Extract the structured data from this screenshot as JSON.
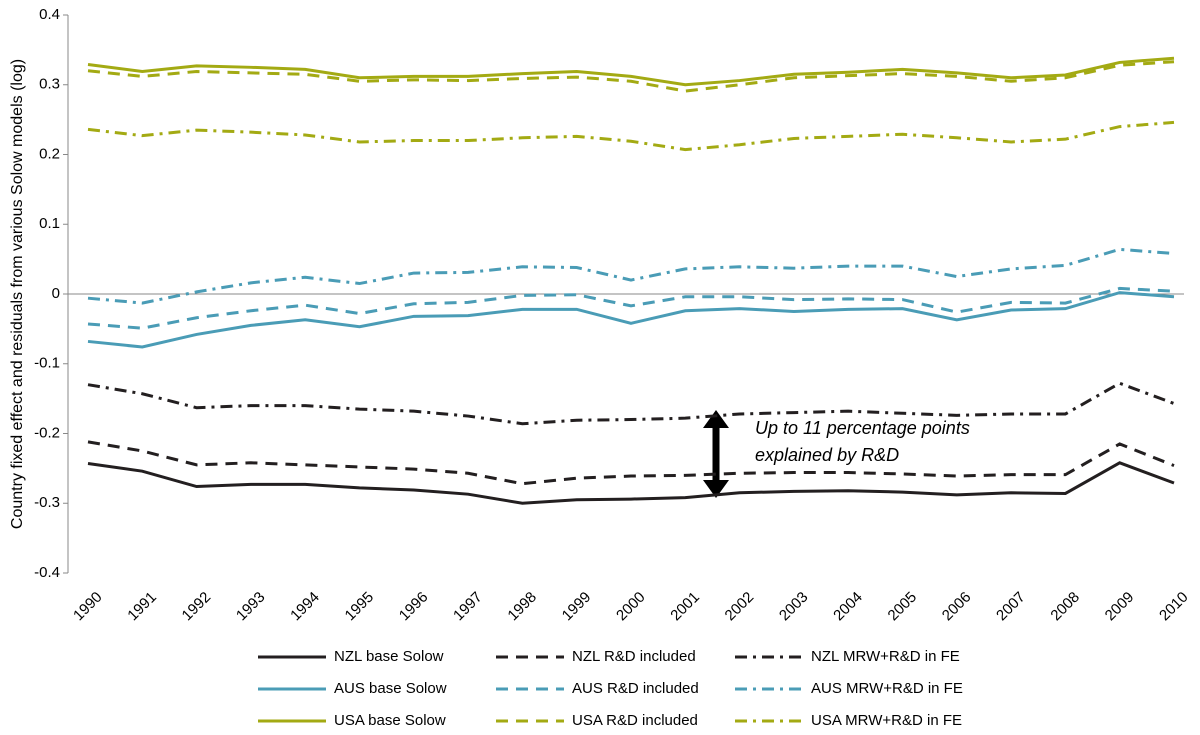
{
  "chart_data": {
    "type": "line",
    "y_label": "Country fixed effect and residuals from various Solow models (log)",
    "annotation": [
      "Up to 11 percentage points",
      "explained by R&D"
    ],
    "categories": [
      "1990",
      "1991",
      "1992",
      "1993",
      "1994",
      "1995",
      "1996",
      "1997",
      "1998",
      "1999",
      "2000",
      "2001",
      "2002",
      "2003",
      "2004",
      "2005",
      "2006",
      "2007",
      "2008",
      "2009",
      "2010"
    ],
    "ylim": [
      -0.4,
      0.4
    ],
    "yticks": [
      -0.4,
      -0.3,
      -0.2,
      -0.1,
      0,
      0.1,
      0.2,
      0.3,
      0.4
    ],
    "legend_columns": 3,
    "series": [
      {
        "name": "NZL base Solow",
        "color": "#231f20",
        "style": "solid",
        "values": [
          -0.243,
          -0.254,
          -0.276,
          -0.273,
          -0.273,
          -0.278,
          -0.281,
          -0.287,
          -0.3,
          -0.295,
          -0.294,
          -0.292,
          -0.285,
          -0.283,
          -0.282,
          -0.284,
          -0.288,
          -0.285,
          -0.286,
          -0.242,
          -0.271
        ]
      },
      {
        "name": "NZL R&D included",
        "color": "#231f20",
        "style": "dashed",
        "values": [
          -0.212,
          -0.225,
          -0.245,
          -0.242,
          -0.245,
          -0.248,
          -0.251,
          -0.257,
          -0.272,
          -0.264,
          -0.261,
          -0.26,
          -0.257,
          -0.256,
          -0.256,
          -0.258,
          -0.261,
          -0.259,
          -0.259,
          -0.215,
          -0.246
        ]
      },
      {
        "name": "NZL MRW+R&D in FE",
        "color": "#231f20",
        "style": "dashdot",
        "values": [
          -0.13,
          -0.143,
          -0.163,
          -0.16,
          -0.16,
          -0.165,
          -0.168,
          -0.175,
          -0.186,
          -0.181,
          -0.18,
          -0.178,
          -0.172,
          -0.17,
          -0.168,
          -0.171,
          -0.174,
          -0.172,
          -0.172,
          -0.128,
          -0.157
        ]
      },
      {
        "name": "AUS base Solow",
        "color": "#4a9cb6",
        "style": "solid",
        "values": [
          -0.068,
          -0.076,
          -0.058,
          -0.045,
          -0.037,
          -0.047,
          -0.032,
          -0.031,
          -0.022,
          -0.022,
          -0.042,
          -0.024,
          -0.021,
          -0.025,
          -0.022,
          -0.021,
          -0.037,
          -0.023,
          -0.021,
          0.002,
          -0.004
        ]
      },
      {
        "name": "AUS R&D included",
        "color": "#4a9cb6",
        "style": "dashed",
        "values": [
          -0.043,
          -0.049,
          -0.034,
          -0.024,
          -0.016,
          -0.028,
          -0.014,
          -0.012,
          -0.002,
          -0.001,
          -0.017,
          -0.004,
          -0.004,
          -0.008,
          -0.007,
          -0.008,
          -0.026,
          -0.012,
          -0.013,
          0.008,
          0.004
        ]
      },
      {
        "name": "AUS MRW+R&D in FE",
        "color": "#4a9cb6",
        "style": "dashdot",
        "values": [
          -0.006,
          -0.013,
          0.003,
          0.016,
          0.024,
          0.015,
          0.03,
          0.031,
          0.039,
          0.038,
          0.02,
          0.036,
          0.039,
          0.037,
          0.04,
          0.04,
          0.025,
          0.036,
          0.041,
          0.064,
          0.058
        ]
      },
      {
        "name": "USA base Solow",
        "color": "#a3aa13",
        "style": "solid",
        "values": [
          0.329,
          0.319,
          0.327,
          0.325,
          0.322,
          0.31,
          0.312,
          0.312,
          0.316,
          0.319,
          0.312,
          0.3,
          0.306,
          0.315,
          0.318,
          0.322,
          0.317,
          0.31,
          0.314,
          0.332,
          0.338
        ]
      },
      {
        "name": "USA R&D included",
        "color": "#a3aa13",
        "style": "dashed",
        "values": [
          0.32,
          0.312,
          0.319,
          0.317,
          0.315,
          0.305,
          0.307,
          0.306,
          0.309,
          0.311,
          0.305,
          0.291,
          0.3,
          0.31,
          0.313,
          0.316,
          0.312,
          0.305,
          0.31,
          0.328,
          0.333
        ]
      },
      {
        "name": "USA MRW+R&D in FE",
        "color": "#a3aa13",
        "style": "dashdot",
        "values": [
          0.236,
          0.227,
          0.235,
          0.232,
          0.228,
          0.218,
          0.22,
          0.22,
          0.224,
          0.226,
          0.219,
          0.207,
          0.214,
          0.223,
          0.226,
          0.229,
          0.224,
          0.218,
          0.222,
          0.24,
          0.246
        ]
      }
    ]
  }
}
